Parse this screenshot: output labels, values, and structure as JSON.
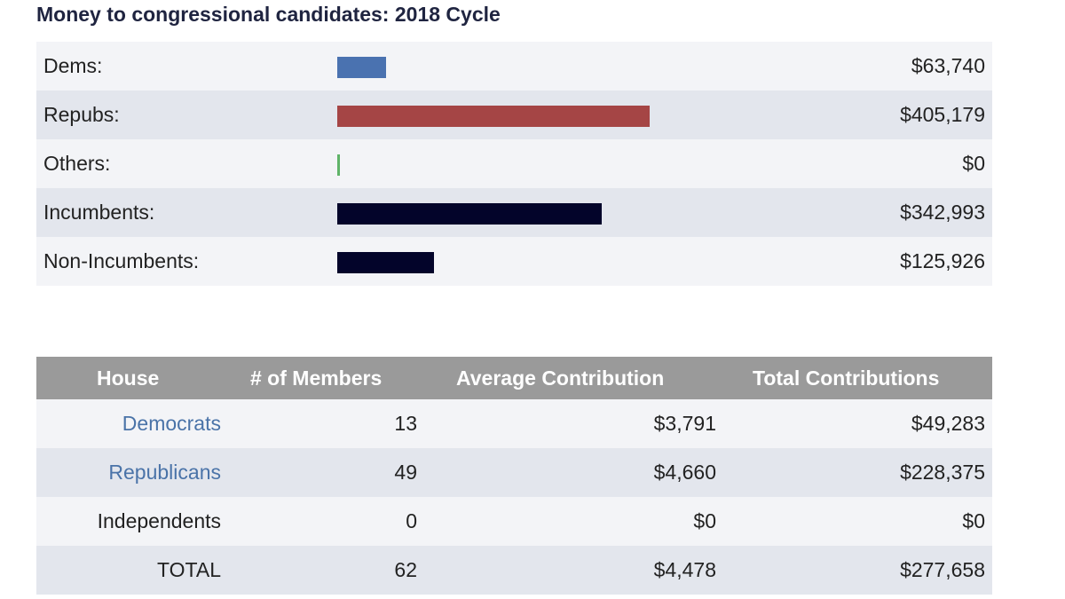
{
  "title": "Money to congressional candidates: 2018 Cycle",
  "summary": {
    "max_value": 405179,
    "rows": [
      {
        "label": "Dems:",
        "amount": 63740,
        "value_text": "$63,740",
        "color": "#4a72b0"
      },
      {
        "label": "Repubs:",
        "amount": 405179,
        "value_text": "$405,179",
        "color": "#a54545"
      },
      {
        "label": "Others:",
        "amount": 0,
        "value_text": "$0",
        "color": "#5fb368"
      },
      {
        "label": "Incumbents:",
        "amount": 342993,
        "value_text": "$342,993",
        "color": "#03042a"
      },
      {
        "label": "Non-Incumbents:",
        "amount": 125926,
        "value_text": "$125,926",
        "color": "#03042a"
      }
    ]
  },
  "house_table": {
    "headers": [
      "House",
      "# of Members",
      "Average Contribution",
      "Total Contributions"
    ],
    "rows": [
      {
        "party": "Democrats",
        "members": "13",
        "average": "$3,791",
        "total": "$49,283",
        "link": true
      },
      {
        "party": "Republicans",
        "members": "49",
        "average": "$4,660",
        "total": "$228,375",
        "link": true
      },
      {
        "party": "Independents",
        "members": "0",
        "average": "$0",
        "total": "$0",
        "link": false
      },
      {
        "party": "TOTAL",
        "members": "62",
        "average": "$4,478",
        "total": "$277,658",
        "link": false
      }
    ]
  }
}
